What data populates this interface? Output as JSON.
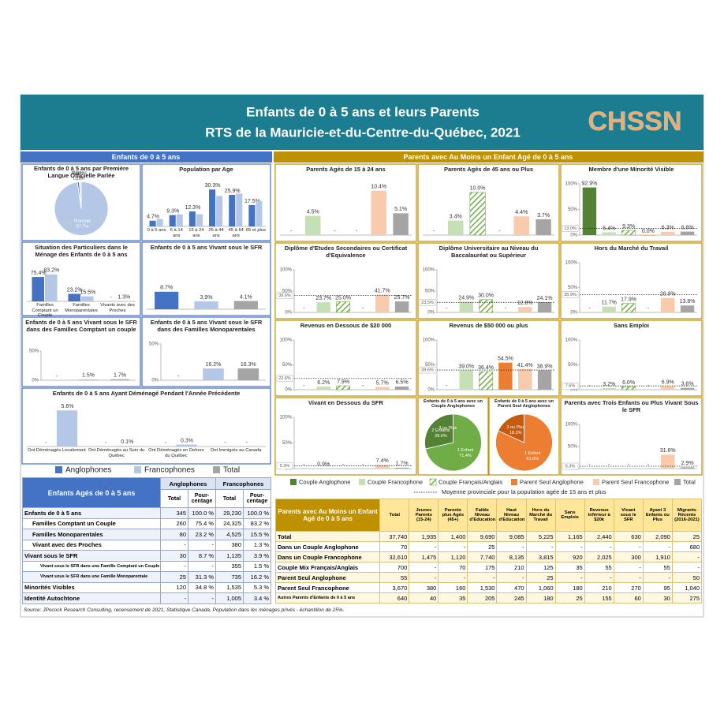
{
  "header": {
    "title": "Enfants de 0 à 5 ans et leurs Parents",
    "subtitle": "RTS de la Mauricie-et-du-Centre-du-Québec, 2021",
    "logo": "CHSSN"
  },
  "sections": {
    "left": "Enfants de 0 à 5 ans",
    "right": "Parents avec Au Moins un Enfant Agé de 0 à 5 ans"
  },
  "legend_left": [
    {
      "name": "Anglophones",
      "color": "#4472c4"
    },
    {
      "name": "Francophones",
      "color": "#b4c7e7"
    },
    {
      "name": "Total",
      "color": "#a5a5a5"
    }
  ],
  "legend_right": [
    {
      "name": "Couple Anglophone",
      "color": "#548235"
    },
    {
      "name": "Couple Francophone",
      "color": "#c5e0b4"
    },
    {
      "name": "Couple Français/Anglais",
      "color": "#70ad47",
      "pattern": "hatch"
    },
    {
      "name": "Parent Seul Anglophone",
      "color": "#ed7d31"
    },
    {
      "name": "Parent Seul Francophone",
      "color": "#f8cbad"
    },
    {
      "name": "Total",
      "color": "#a5a5a5"
    }
  ],
  "provincial_note": "Moyenne provinciale pour la population agée de 15 ans et plus",
  "chart_data": [
    {
      "type": "pie",
      "title": "Enfants de 0 à 5 ans par Première Langue Officielle Parlée",
      "labels": [
        "Français",
        "Autres",
        "Anglais"
      ],
      "values": [
        97.7,
        1.1,
        1.2
      ],
      "value_labels": [
        "97.7%",
        "1.1%",
        "1.2%"
      ],
      "colors": [
        "#b4c7e7",
        "#4472c4",
        "#dae3f3"
      ]
    },
    {
      "type": "bar",
      "title": "Population par Age",
      "categories": [
        "0 à 5 ans",
        "6 à 14 ans",
        "15 à 24 ans",
        "25 à 44 ans",
        "45 à 64 ans",
        "65 et plus"
      ],
      "series": [
        {
          "color": "#4472c4",
          "values": [
            4.7,
            9.3,
            12.3,
            30.3,
            25.9,
            17.5
          ],
          "value_labels": [
            "4.7%",
            "9.3%",
            "12.3%",
            "30.3%",
            "25.9%",
            "17.5%"
          ]
        },
        {
          "color": "#b4c7e7",
          "values": [
            6,
            10,
            10,
            25,
            27,
            21
          ]
        }
      ],
      "ylim": [
        0,
        35
      ]
    },
    {
      "type": "bar",
      "title": "Situation des Particuliers dans le Ménage des Enfants de 0 à 5 ans",
      "categories": [
        "Familles Comptant un Couple",
        "Familles Monoparentales",
        "Vivants avec des Proches"
      ],
      "series": [
        {
          "color": "#4472c4",
          "values": [
            75.4,
            23.2,
            null
          ],
          "value_labels": [
            "75.4%",
            "23.2%",
            "-"
          ]
        },
        {
          "color": "#b4c7e7",
          "values": [
            83.2,
            15.5,
            1.3
          ],
          "value_labels": [
            "83.2%",
            "15.5%",
            "1.3%"
          ]
        }
      ],
      "ylim": [
        0,
        100
      ]
    },
    {
      "type": "bar",
      "title": "Enfants de 0 à 5 ans Vivant sous le SFR",
      "values": [
        8.7,
        3.9,
        4.1
      ],
      "value_labels": [
        "8.7%",
        "3.9%",
        "4.1%"
      ],
      "ylim": [
        0,
        20
      ]
    },
    {
      "type": "bar",
      "title": "Enfants de 0 à 5 ans Vivant sous le SFR dans des Familles Comptant un couple",
      "values": [
        null,
        1.5,
        1.7
      ],
      "value_labels": [
        "-",
        "1.5%",
        "1.7%"
      ],
      "ylim": [
        0,
        50
      ],
      "yticks": [
        {
          "value": 0,
          "label": "0%"
        },
        {
          "value": 50,
          "label": "50%"
        }
      ]
    },
    {
      "type": "bar",
      "title": "Enfants de 0 à 5 ans Vivant sous le SFR dans des Familles Monoparentales",
      "values": [
        null,
        16.2,
        16.3
      ],
      "value_labels": [
        "-",
        "16.2%",
        "16.3%"
      ],
      "ylim": [
        0,
        50
      ],
      "yticks": [
        {
          "value": 0,
          "label": "0%"
        },
        {
          "value": 50,
          "label": "50%"
        }
      ]
    },
    {
      "type": "bar",
      "title": "Enfants de 0 à 5 ans Ayant Déménagé Pendant l'Année Précédente",
      "categories": [
        "Ont Déménagés Localement",
        "Ont Déménagés au Sein du Québec",
        "Ont Déménagés en Dehors du Québec",
        "Ont Immigrés au Canada"
      ],
      "series": [
        {
          "color": "#4472c4",
          "values": [
            null,
            null,
            null,
            null
          ],
          "value_labels": [
            "-",
            "-",
            "-",
            "-"
          ]
        },
        {
          "color": "#b4c7e7",
          "values": [
            5.6,
            0.1,
            0.3,
            null
          ],
          "value_labels": [
            "5.6%",
            "0.1%",
            "0.3%",
            "-"
          ]
        }
      ],
      "ylim": [
        0,
        6
      ]
    },
    {
      "type": "bar",
      "title": "Parents Agés de 15 à 24 ans",
      "values": [
        null,
        4.5,
        null,
        null,
        10.4,
        5.1
      ],
      "value_labels": [
        "-",
        "4.5%",
        "-",
        "-",
        "10.4%",
        "5.1%"
      ],
      "ylim": [
        0,
        12
      ]
    },
    {
      "type": "bar",
      "title": "Parents Agés de 45 ans ou Plus",
      "values": [
        null,
        3.4,
        10.0,
        null,
        4.4,
        3.7
      ],
      "value_labels": [
        "-",
        "3.4%",
        "10.0%",
        "-",
        "4.4%",
        "3.7%"
      ],
      "ylim": [
        0,
        12
      ]
    },
    {
      "type": "bar",
      "title": "Membre d'une Minorité Visible",
      "values": [
        92.9,
        5.4,
        9.3,
        0.0,
        6.3,
        6.8
      ],
      "value_labels": [
        "92.9%",
        "5.4%",
        "9.3%",
        "0.0%",
        "6.3%",
        "6.8%"
      ],
      "ylim": [
        0,
        100
      ],
      "yticks": [
        {
          "value": 0,
          "label": "0%"
        },
        {
          "value": 50,
          "label": "50%"
        },
        {
          "value": 100,
          "label": "100%"
        }
      ],
      "provincial": {
        "value": 13.0,
        "label": "13.0%"
      }
    },
    {
      "type": "bar",
      "title": "Diplôme d'Etudes Secondaires ou Certificat d'Equivalence",
      "values": [
        null,
        23.7,
        25.0,
        null,
        41.7,
        25.7
      ],
      "value_labels": [
        "-",
        "23.7%",
        "25.0%",
        "-",
        "41.7%",
        "25.7%"
      ],
      "ylim": [
        0,
        100
      ],
      "yticks": [
        {
          "value": 0,
          "label": "0%"
        },
        {
          "value": 50,
          "label": "50%"
        },
        {
          "value": 100,
          "label": "100%"
        }
      ],
      "provincial": {
        "value": 39.6,
        "label": "39.6%"
      }
    },
    {
      "type": "bar",
      "title": "Diplôme Universitaire au Niveau du Baccalauréat ou Supérieur",
      "values": [
        null,
        24.9,
        30.0,
        null,
        12.8,
        24.1
      ],
      "value_labels": [
        "-",
        "24.9%",
        "30.0%",
        "-",
        "12.8%",
        "24.1%"
      ],
      "ylim": [
        0,
        100
      ],
      "yticks": [
        {
          "value": 0,
          "label": "0%"
        },
        {
          "value": 50,
          "label": "50%"
        },
        {
          "value": 100,
          "label": "100%"
        }
      ],
      "provincial": {
        "value": 23.5,
        "label": "23.5%"
      }
    },
    {
      "type": "bar",
      "title": "Hors du Marché du Travail",
      "values": [
        null,
        11.7,
        17.9,
        null,
        28.9,
        13.8
      ],
      "value_labels": [
        "-",
        "11.7%",
        "17.9%",
        "-",
        "28.9%",
        "13.8%"
      ],
      "ylim": [
        0,
        100
      ],
      "yticks": [
        {
          "value": 0,
          "label": "0%"
        },
        {
          "value": 50,
          "label": "50%"
        },
        {
          "value": 100,
          "label": "100%"
        }
      ],
      "provincial": {
        "value": 35.9,
        "label": "35.9%"
      }
    },
    {
      "type": "bar",
      "title": "Revenus en Dessous de $20 000",
      "values": [
        null,
        6.2,
        7.9,
        null,
        5.7,
        6.5
      ],
      "value_labels": [
        "-",
        "6.2%",
        "7.9%",
        "-",
        "5.7%",
        "6.5%"
      ],
      "ylim": [
        0,
        100
      ],
      "yticks": [
        {
          "value": 0,
          "label": "0%"
        },
        {
          "value": 50,
          "label": "50%"
        },
        {
          "value": 100,
          "label": "100%"
        }
      ],
      "provincial": {
        "value": 22.6,
        "label": "22.6%"
      }
    },
    {
      "type": "bar",
      "title": "Revenus de $50 000 ou plus",
      "values": [
        null,
        39.0,
        36.4,
        54.5,
        41.4,
        38.9
      ],
      "value_labels": [
        "-",
        "39.0%",
        "36.4%",
        "54.5%",
        "41.4%",
        "38.9%"
      ],
      "ylim": [
        0,
        100
      ],
      "yticks": [
        {
          "value": 0,
          "label": "0%"
        },
        {
          "value": 50,
          "label": "50%"
        },
        {
          "value": 100,
          "label": "100%"
        }
      ],
      "provincial": {
        "value": 39.6,
        "label": "39.6%"
      }
    },
    {
      "type": "bar",
      "title": "Sans Emploi",
      "values": [
        null,
        3.2,
        6.0,
        null,
        6.9,
        3.6
      ],
      "value_labels": [
        "-",
        "3.2%",
        "6.0%",
        "-",
        "6.9%",
        "3.6%"
      ],
      "ylim": [
        0,
        100
      ],
      "yticks": [
        {
          "value": 0,
          "label": "0%"
        },
        {
          "value": 50,
          "label": "50%"
        },
        {
          "value": 100,
          "label": "100%"
        }
      ],
      "provincial": {
        "value": 7.6,
        "label": "7.6%"
      }
    },
    {
      "type": "bar",
      "title": "Vivant en Dessous du SFR",
      "values": [
        null,
        0.9,
        null,
        null,
        7.4,
        1.7
      ],
      "value_labels": [
        "-",
        "0.9%",
        "-",
        "-",
        "7.4%",
        "1.7%"
      ],
      "ylim": [
        0,
        100
      ],
      "yticks": [
        {
          "value": 0,
          "label": "0%"
        },
        {
          "value": 50,
          "label": "50%"
        },
        {
          "value": 100,
          "label": "100%"
        }
      ],
      "provincial": {
        "value": 5.3,
        "label": "5.3%"
      }
    },
    {
      "type": "pie",
      "title": "Enfants de 0 à 5 ans avec un Couple Anglophones",
      "labels": [
        "1 Enfant",
        "2 Enfants",
        "3 ou Plus"
      ],
      "values": [
        71.4,
        28.6,
        null
      ],
      "value_labels": [
        "71.4%",
        "28.6%",
        null
      ],
      "colors": [
        "#70ad47",
        "#548235",
        "#a9d18e"
      ]
    },
    {
      "type": "pie",
      "title": "Enfants de 0 à 5 ans avec un Parent Seul Anglophones",
      "labels": [
        "1 Enfant",
        "2 ou Plus"
      ],
      "values": [
        81.8,
        18.2
      ],
      "value_labels": [
        "81.8%",
        "18.2%"
      ],
      "colors": [
        "#ed7d31",
        "#c55a11"
      ]
    },
    {
      "type": "bar",
      "title": "Parents avec Trois Enfants ou Plus Vivant Sous le SFR",
      "values": [
        null,
        null,
        null,
        null,
        31.6,
        2.9
      ],
      "value_labels": [
        "-",
        "-",
        "-",
        "-",
        "31.6%",
        "2.9%"
      ],
      "ylim": [
        0,
        100
      ],
      "yticks": [
        {
          "value": 0,
          "label": "0%"
        },
        {
          "value": 50,
          "label": "50%"
        },
        {
          "value": 100,
          "label": "100%"
        }
      ],
      "provincial": {
        "value": 5.3,
        "label": "5.3%"
      }
    }
  ],
  "left_table": {
    "title": "Enfants Agés de 0 à 5 ans",
    "groups": [
      "Anglophones",
      "Francophones"
    ],
    "subheads": [
      "Total",
      "Pour-centage",
      "Total",
      "Pour-centage"
    ],
    "rows": [
      [
        "Enfants de 0 à 5 ans",
        "345",
        "100.0 %",
        "29,230",
        "100.0 %"
      ],
      [
        "Familles Comptant un Couple",
        "260",
        "75.4 %",
        "24,325",
        "83.2 %"
      ],
      [
        "Familles Monoparentales",
        "80",
        "23.2 %",
        "4,525",
        "15.5 %"
      ],
      [
        "Vivant avec des Proches",
        "-",
        "-",
        "380",
        "1.3 %"
      ],
      [
        "Vivant sous le SFR",
        "30",
        "8.7 %",
        "1,135",
        "3.9 %"
      ],
      [
        "Vivant sous le SFR dans une Famille Comptant un Couple",
        "-",
        "-",
        "355",
        "1.5 %"
      ],
      [
        "Vivant sous le SFR dans une Famille Monoparentale",
        "25",
        "31.3 %",
        "735",
        "16.2 %"
      ],
      [
        "Minorités Visibles",
        "120",
        "34.8 %",
        "1,535",
        "5.3 %"
      ],
      [
        "Identité Autochtone",
        "-",
        "-",
        "1,005",
        "3.4 %"
      ]
    ]
  },
  "right_table": {
    "title": "Parents avec Au Moins un Enfant Agé de 0 à 5 ans",
    "columns": [
      "Total",
      "Jeunes Parents (15-24)",
      "Parents plus Agés (45+)",
      "Faible Niveau d'Education",
      "Haut Niveau d'Education",
      "Hors du Marché du Travail",
      "Sans Emplois",
      "Revenus Inférieur à $20k",
      "Vivant sous le SFR",
      "Ayant 3 Enfants ou Plus",
      "Migrants Récents (2016-2021)"
    ],
    "rows": [
      [
        "Total",
        "37,740",
        "1,935",
        "1,400",
        "9,690",
        "9,085",
        "5,225",
        "1,165",
        "2,440",
        "630",
        "2,090",
        "25"
      ],
      [
        "Dans un Couple Anglophone",
        "70",
        "-",
        "-",
        "25",
        "-",
        "-",
        "-",
        "-",
        "-",
        "-",
        "680"
      ],
      [
        "Dans un Couple Francophone",
        "32,610",
        "1,475",
        "1,120",
        "7,740",
        "8,135",
        "3,815",
        "920",
        "2,025",
        "300",
        "1,910",
        "-"
      ],
      [
        "Couple Mix Français/Anglais",
        "700",
        "-",
        "70",
        "175",
        "210",
        "125",
        "35",
        "55",
        "-",
        "55",
        "-"
      ],
      [
        "Parent Seul Anglophone",
        "55",
        "-",
        "-",
        "-",
        "-",
        "25",
        "-",
        "-",
        "-",
        "-",
        "50"
      ],
      [
        "Parent Seul Francophone",
        "3,670",
        "380",
        "160",
        "1,530",
        "470",
        "1,060",
        "180",
        "210",
        "270",
        "95",
        "1,040"
      ],
      [
        "Autres Parents d'Enfants de 0 à 5 ans",
        "640",
        "40",
        "35",
        "205",
        "245",
        "180",
        "25",
        "155",
        "60",
        "30",
        "275"
      ]
    ]
  },
  "source": "Source: JPocock Research Consulting, recensement de 2021, Statistique Canada. Population dans les ménages privés - échantillon de 25%."
}
